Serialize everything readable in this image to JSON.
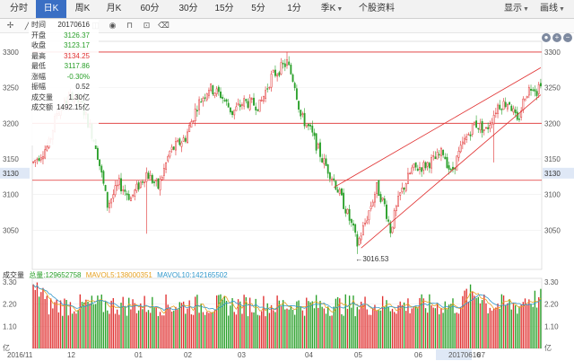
{
  "toolbar": {
    "tabs": [
      {
        "label": "分时",
        "active": false,
        "dd": false
      },
      {
        "label": "日K",
        "active": true,
        "dd": false
      },
      {
        "label": "周K",
        "active": false,
        "dd": false
      },
      {
        "label": "月K",
        "active": false,
        "dd": false
      },
      {
        "label": "60分",
        "active": false,
        "dd": false
      },
      {
        "label": "30分",
        "active": false,
        "dd": false
      },
      {
        "label": "15分",
        "active": false,
        "dd": false
      },
      {
        "label": "5分",
        "active": false,
        "dd": false
      },
      {
        "label": "1分",
        "active": false,
        "dd": false
      },
      {
        "label": "季K",
        "active": false,
        "dd": true
      },
      {
        "label": "个股资料",
        "active": false,
        "dd": false
      }
    ],
    "display_label": "显示",
    "drawline_label": "画线"
  },
  "info": {
    "rows": [
      {
        "label": "时间",
        "value": "20170616",
        "color": "blk"
      },
      {
        "label": "开盘",
        "value": "3126.37",
        "color": "green"
      },
      {
        "label": "收盘",
        "value": "3123.17",
        "color": "green"
      },
      {
        "label": "最高",
        "value": "3134.25",
        "color": "red"
      },
      {
        "label": "最低",
        "value": "3117.86",
        "color": "green"
      },
      {
        "label": "涨幅",
        "value": "-0.30%",
        "color": "green"
      },
      {
        "label": "振幅",
        "value": "0.52",
        "color": "blk"
      },
      {
        "label": "成交量",
        "value": "1.30亿",
        "color": "blk"
      },
      {
        "label": "成交额",
        "value": "1492.15亿",
        "color": "blk"
      }
    ]
  },
  "volume_header": {
    "title": "成交量",
    "total": "总量:129652758",
    "ma5": "MAVOL5:138000351",
    "ma10": "MAVOL10:142165502"
  },
  "colors": {
    "up": "#e03030",
    "down": "#2aa02a",
    "ma5": "#e6a020",
    "ma10": "#3399cc",
    "accent": "#3a6fc4"
  },
  "chart_data": {
    "type": "candlestick",
    "price_axis": {
      "ylim": [
        3000,
        3310
      ],
      "ticks": [
        3050,
        3100,
        3150,
        3200,
        3250,
        3300
      ],
      "highlight": 3130
    },
    "volume_axis": {
      "ylim": [
        0,
        3.3
      ],
      "ticks": [
        "3.30",
        "2.20",
        "1.10"
      ],
      "unit": "亿"
    },
    "x_labels": [
      "2016/11",
      "12",
      "01",
      "02",
      "03",
      "04",
      "05",
      "06",
      "20170616",
      "07"
    ],
    "horizontal_lines": [
      3300,
      3200,
      3120
    ],
    "annotation": {
      "text": "←3016.53",
      "value": 3016.53
    },
    "anchors": [
      {
        "d": 0,
        "v": 3145
      },
      {
        "d": 8,
        "v": 3170
      },
      {
        "d": 12,
        "v": 3215
      },
      {
        "d": 20,
        "v": 3240
      },
      {
        "d": 25,
        "v": 3225
      },
      {
        "d": 32,
        "v": 3170
      },
      {
        "d": 38,
        "v": 3085
      },
      {
        "d": 44,
        "v": 3115
      },
      {
        "d": 50,
        "v": 3095
      },
      {
        "d": 58,
        "v": 3130
      },
      {
        "d": 64,
        "v": 3110
      },
      {
        "d": 70,
        "v": 3160
      },
      {
        "d": 78,
        "v": 3180
      },
      {
        "d": 84,
        "v": 3225
      },
      {
        "d": 90,
        "v": 3250
      },
      {
        "d": 96,
        "v": 3240
      },
      {
        "d": 102,
        "v": 3215
      },
      {
        "d": 108,
        "v": 3230
      },
      {
        "d": 116,
        "v": 3225
      },
      {
        "d": 122,
        "v": 3265
      },
      {
        "d": 126,
        "v": 3275
      },
      {
        "d": 130,
        "v": 3285
      },
      {
        "d": 134,
        "v": 3255
      },
      {
        "d": 137,
        "v": 3210
      },
      {
        "d": 142,
        "v": 3190
      },
      {
        "d": 148,
        "v": 3150
      },
      {
        "d": 154,
        "v": 3120
      },
      {
        "d": 160,
        "v": 3080
      },
      {
        "d": 164,
        "v": 3050
      },
      {
        "d": 166,
        "v": 3030
      },
      {
        "d": 170,
        "v": 3060
      },
      {
        "d": 176,
        "v": 3110
      },
      {
        "d": 180,
        "v": 3085
      },
      {
        "d": 183,
        "v": 3050
      },
      {
        "d": 188,
        "v": 3100
      },
      {
        "d": 194,
        "v": 3135
      },
      {
        "d": 200,
        "v": 3140
      },
      {
        "d": 206,
        "v": 3150
      },
      {
        "d": 210,
        "v": 3160
      },
      {
        "d": 214,
        "v": 3130
      },
      {
        "d": 220,
        "v": 3170
      },
      {
        "d": 226,
        "v": 3200
      },
      {
        "d": 232,
        "v": 3190
      },
      {
        "d": 238,
        "v": 3225
      },
      {
        "d": 244,
        "v": 3230
      },
      {
        "d": 248,
        "v": 3200
      },
      {
        "d": 252,
        "v": 3240
      },
      {
        "d": 256,
        "v": 3255
      },
      {
        "d": 258,
        "v": 3245
      },
      {
        "d": 260,
        "v": 3260
      }
    ],
    "events": [
      {
        "d": 166,
        "low": 3016.53
      },
      {
        "d": 183,
        "low": 3040
      },
      {
        "d": 236,
        "low": 3145
      },
      {
        "d": 130,
        "high": 3300
      },
      {
        "d": 58,
        "low": 3045
      }
    ],
    "trend_lines": [
      {
        "from": {
          "d": 154,
          "v": 3110
        },
        "to": {
          "d": 260,
          "v": 3278
        }
      },
      {
        "from": {
          "d": 168,
          "v": 3025
        },
        "to": {
          "d": 260,
          "v": 3240
        }
      }
    ]
  }
}
